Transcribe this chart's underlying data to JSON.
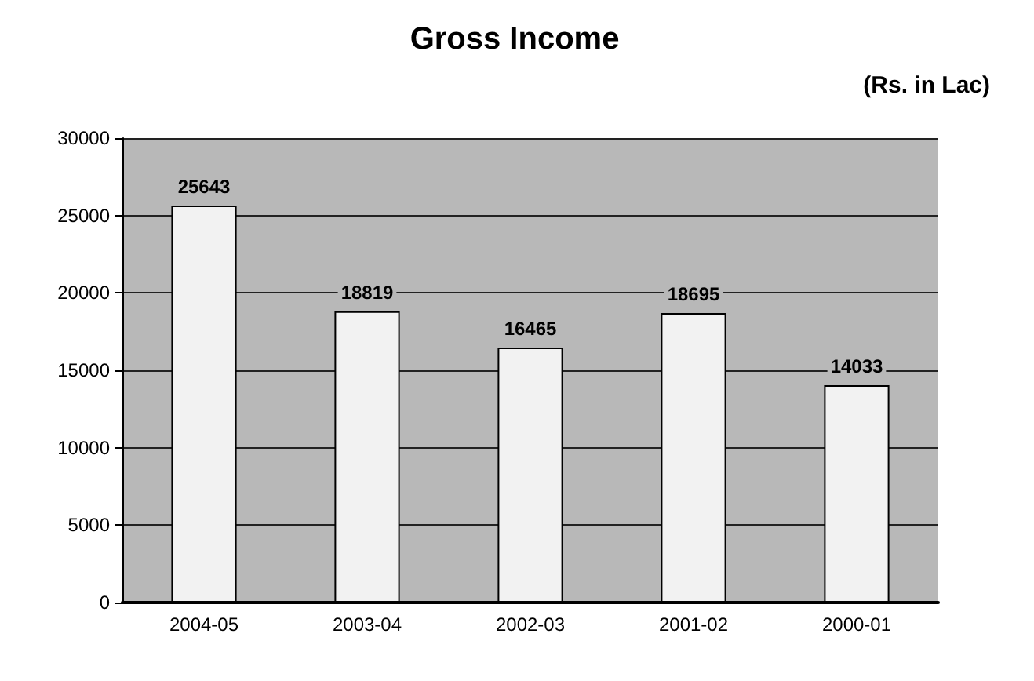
{
  "chart_data": {
    "type": "bar",
    "title": "Gross Income",
    "subtitle": "(Rs. in Lac)",
    "categories": [
      "2004-05",
      "2003-04",
      "2002-03",
      "2001-02",
      "2000-01"
    ],
    "values": [
      25643,
      18819,
      16465,
      18695,
      14033
    ],
    "color": "#f2f2f2",
    "ylim": [
      0,
      30000
    ],
    "yticks": [
      0,
      5000,
      10000,
      15000,
      20000,
      25000,
      30000
    ],
    "grid": "y",
    "data_labels": true
  }
}
